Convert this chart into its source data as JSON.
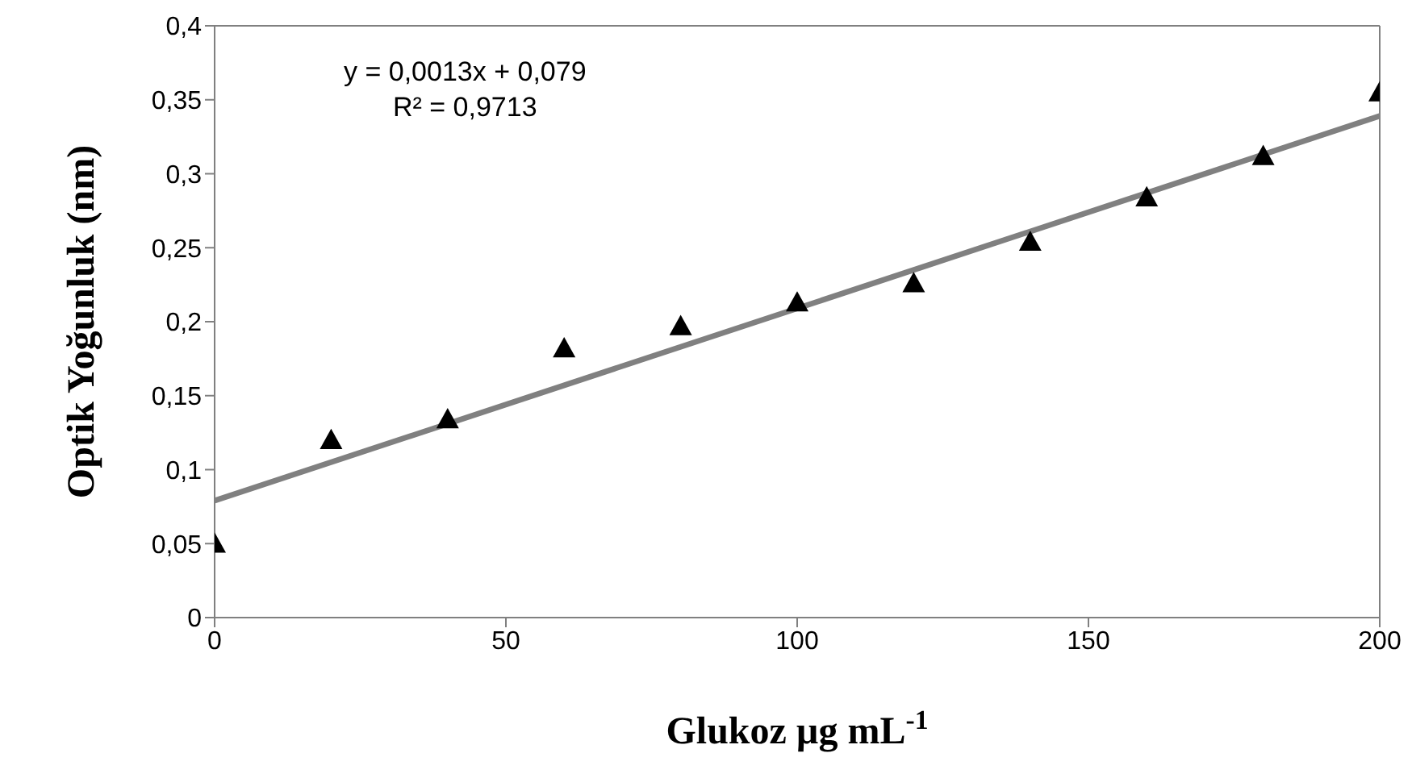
{
  "chart_data": {
    "type": "scatter",
    "xlabel": "Glukoz µg mL$^{-1}$",
    "ylabel": "Optik Yoğunluk (nm)",
    "annotations": [
      "y = 0,0013x + 0,079",
      "R² = 0,9713"
    ],
    "series": [
      {
        "color": "#000000",
        "marker": "triangle",
        "x": [
          0,
          20,
          40,
          60,
          80,
          100,
          120,
          140,
          160,
          180,
          200
        ],
        "values": [
          0.05,
          0.12,
          0.134,
          0.182,
          0.197,
          0.213,
          0.226,
          0.254,
          0.284,
          0.312,
          0.355
        ]
      },
      {
        "type": "line",
        "color": "#808080",
        "marker": "none",
        "x": [
          0,
          200
        ],
        "values": [
          0.079,
          0.339
        ]
      }
    ],
    "xlim": [
      0,
      200
    ],
    "xticks": [
      0,
      50,
      100,
      150,
      200
    ],
    "ylim": [
      0,
      0.4
    ],
    "yticks": [
      0,
      {
        "value": 0.05,
        "label": "0,05"
      },
      {
        "value": 0.1,
        "label": "0,1"
      },
      {
        "value": 0.15,
        "label": "0,15"
      },
      {
        "value": 0.2,
        "label": "0,2"
      },
      {
        "value": 0.25,
        "label": "0,25"
      },
      {
        "value": 0.3,
        "label": "0,3"
      },
      {
        "value": 0.35,
        "label": "0,35"
      },
      {
        "value": 0.4,
        "label": "0,4"
      }
    ],
    "legend": false
  }
}
